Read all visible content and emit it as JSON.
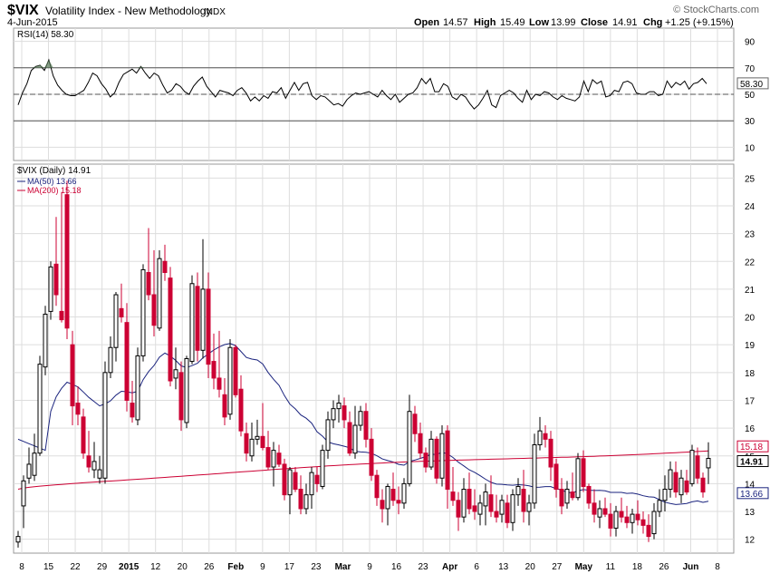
{
  "header": {
    "symbol": "$VIX",
    "name": "Volatility Index - New Methodology",
    "exchange": "INDX",
    "date": "4-Jun-2015",
    "watermark": "© StockCharts.com",
    "open_label": "Open",
    "open": "14.57",
    "high_label": "High",
    "high": "15.49",
    "low_label": "Low",
    "low": "13.99",
    "close_label": "Close",
    "close": "14.91",
    "chg_label": "Chg",
    "chg": "+1.25 (+9.15%)"
  },
  "colors": {
    "up": "#000000",
    "down": "#cc0033",
    "ma50": "#1a237e",
    "ma200": "#cc0033",
    "rsi": "#000000",
    "grid": "#dddddd"
  },
  "chart_data": [
    {
      "type": "line",
      "panel": "rsi",
      "label": "RSI(14) 58.30",
      "ylim": [
        0,
        100
      ],
      "yticks": [
        10,
        30,
        50,
        70,
        90
      ],
      "ref_lines": [
        30,
        50,
        70
      ],
      "last_value": "58.30",
      "values": [
        42,
        51,
        58,
        68,
        71,
        72,
        68,
        76,
        64,
        57,
        53,
        50,
        49,
        49,
        51,
        53,
        59,
        66,
        64,
        58,
        54,
        48,
        51,
        59,
        65,
        67,
        69,
        66,
        71,
        66,
        62,
        66,
        64,
        57,
        51,
        53,
        58,
        56,
        52,
        50,
        56,
        60,
        63,
        56,
        52,
        48,
        53,
        52,
        51,
        49,
        53,
        55,
        51,
        45,
        48,
        45,
        49,
        47,
        52,
        51,
        55,
        47,
        53,
        59,
        53,
        58,
        59,
        49,
        46,
        49,
        48,
        45,
        42,
        43,
        41,
        46,
        49,
        51,
        50,
        51,
        52,
        50,
        48,
        53,
        49,
        46,
        50,
        44,
        47,
        50,
        51,
        55,
        62,
        58,
        62,
        52,
        52,
        58,
        56,
        48,
        46,
        50,
        48,
        43,
        39,
        42,
        47,
        53,
        42,
        40,
        49,
        51,
        53,
        51,
        47,
        44,
        53,
        46,
        50,
        49,
        52,
        51,
        48,
        46,
        49,
        47,
        46,
        45,
        48,
        60,
        52,
        61,
        58,
        60,
        48,
        49,
        53,
        52,
        59,
        60,
        58,
        51,
        50,
        50,
        52,
        52,
        49,
        50,
        60,
        55,
        59,
        57,
        60,
        54,
        58,
        59,
        62,
        58
      ]
    },
    {
      "type": "candlestick",
      "panel": "price",
      "title": "$VIX (Daily) 14.91",
      "ylim": [
        11.5,
        25.5
      ],
      "yticks": [
        12,
        13,
        14,
        15,
        16,
        17,
        18,
        19,
        20,
        21,
        22,
        23,
        24,
        25
      ],
      "x_labels": [
        "8",
        "15",
        "22",
        "29",
        "2015",
        "12",
        "20",
        "26",
        "Feb",
        "9",
        "17",
        "23",
        "Mar",
        "9",
        "16",
        "23",
        "Apr",
        "6",
        "13",
        "20",
        "27",
        "May",
        "11",
        "18",
        "26",
        "Jun",
        "8"
      ],
      "price_tags": {
        "ma200": "15.18",
        "close": "14.91",
        "ma50": "13.66"
      },
      "series": [
        {
          "name": "MA(50) 13.66",
          "type": "line"
        },
        {
          "name": "MA(200) 15.18",
          "type": "line"
        }
      ],
      "ohlc": [
        [
          11.9,
          12.3,
          11.7,
          12.1
        ],
        [
          13.2,
          14.3,
          12.4,
          14.1
        ],
        [
          14.2,
          15.3,
          14.0,
          14.7
        ],
        [
          14.3,
          15.8,
          14.1,
          15.1
        ],
        [
          15.1,
          18.6,
          15.0,
          18.3
        ],
        [
          18.2,
          20.4,
          17.9,
          20.1
        ],
        [
          20.2,
          22.0,
          19.9,
          21.8
        ],
        [
          21.9,
          23.6,
          20.4,
          20.8
        ],
        [
          20.2,
          24.5,
          19.8,
          19.9
        ],
        [
          24.4,
          24.9,
          19.2,
          19.6
        ],
        [
          19.0,
          19.5,
          16.1,
          16.8
        ],
        [
          16.9,
          17.5,
          16.1,
          16.5
        ],
        [
          16.4,
          16.7,
          14.9,
          15.1
        ],
        [
          15.0,
          15.9,
          14.4,
          14.6
        ],
        [
          14.5,
          15.5,
          14.2,
          14.8
        ],
        [
          14.2,
          15.0,
          14.0,
          14.5
        ],
        [
          14.2,
          18.4,
          14.0,
          18.0
        ],
        [
          18.0,
          19.3,
          17.8,
          18.9
        ],
        [
          18.9,
          20.9,
          18.4,
          20.8
        ],
        [
          20.3,
          21.2,
          19.8,
          20.0
        ],
        [
          19.8,
          20.5,
          16.6,
          17.0
        ],
        [
          16.9,
          17.7,
          16.2,
          16.4
        ],
        [
          16.3,
          18.9,
          16.1,
          18.6
        ],
        [
          18.6,
          21.9,
          18.4,
          21.7
        ],
        [
          21.6,
          23.2,
          20.6,
          20.8
        ],
        [
          20.8,
          22.4,
          19.3,
          19.7
        ],
        [
          19.6,
          22.4,
          19.5,
          22.1
        ],
        [
          22.0,
          22.6,
          21.3,
          21.6
        ],
        [
          21.4,
          21.8,
          17.5,
          17.7
        ],
        [
          17.8,
          18.9,
          17.4,
          18.1
        ],
        [
          18.0,
          18.4,
          15.9,
          16.3
        ],
        [
          16.2,
          18.6,
          16.0,
          18.5
        ],
        [
          18.4,
          21.5,
          18.3,
          21.2
        ],
        [
          21.1,
          21.6,
          18.4,
          18.8
        ],
        [
          18.8,
          22.8,
          18.5,
          21.0
        ],
        [
          21.0,
          21.6,
          17.8,
          18.3
        ],
        [
          18.4,
          19.4,
          17.4,
          17.8
        ],
        [
          17.8,
          19.5,
          17.1,
          17.4
        ],
        [
          17.2,
          17.8,
          16.1,
          16.4
        ],
        [
          16.5,
          19.2,
          16.3,
          18.9
        ],
        [
          18.9,
          19.0,
          17.1,
          17.2
        ],
        [
          17.4,
          17.9,
          15.7,
          15.9
        ],
        [
          15.8,
          16.2,
          14.8,
          15.1
        ],
        [
          15.0,
          16.2,
          14.8,
          15.6
        ],
        [
          15.6,
          16.3,
          15.4,
          15.7
        ],
        [
          15.7,
          16.9,
          15.2,
          15.3
        ],
        [
          15.3,
          15.9,
          14.5,
          14.6
        ],
        [
          14.6,
          15.5,
          13.9,
          15.2
        ],
        [
          15.1,
          15.4,
          14.6,
          14.7
        ],
        [
          14.7,
          14.9,
          13.4,
          13.6
        ],
        [
          13.6,
          14.6,
          12.9,
          14.5
        ],
        [
          14.4,
          14.6,
          13.7,
          13.8
        ],
        [
          13.8,
          14.3,
          12.9,
          13.1
        ],
        [
          13.1,
          14.0,
          12.9,
          13.6
        ],
        [
          13.6,
          14.6,
          13.1,
          14.4
        ],
        [
          14.3,
          14.6,
          13.7,
          14.0
        ],
        [
          13.9,
          15.4,
          13.8,
          15.2
        ],
        [
          15.2,
          16.6,
          14.9,
          16.3
        ],
        [
          16.3,
          17.0,
          16.0,
          16.7
        ],
        [
          16.7,
          17.2,
          16.2,
          16.9
        ],
        [
          16.8,
          17.1,
          16.0,
          16.3
        ],
        [
          16.2,
          16.6,
          15.0,
          15.1
        ],
        [
          15.1,
          16.8,
          14.9,
          16.1
        ],
        [
          16.1,
          16.8,
          15.9,
          16.6
        ],
        [
          16.6,
          16.9,
          15.3,
          15.6
        ],
        [
          15.6,
          16.0,
          14.1,
          14.3
        ],
        [
          14.3,
          14.5,
          13.2,
          13.5
        ],
        [
          13.4,
          13.8,
          12.6,
          13.1
        ],
        [
          13.1,
          14.0,
          12.5,
          13.9
        ],
        [
          13.8,
          14.4,
          13.2,
          13.4
        ],
        [
          13.4,
          13.9,
          12.9,
          13.3
        ],
        [
          13.3,
          14.2,
          13.1,
          14.0
        ],
        [
          14.0,
          17.2,
          13.9,
          16.6
        ],
        [
          16.5,
          16.8,
          15.5,
          15.8
        ],
        [
          15.8,
          16.2,
          14.9,
          15.1
        ],
        [
          15.1,
          15.3,
          14.4,
          14.6
        ],
        [
          14.6,
          15.9,
          14.5,
          15.6
        ],
        [
          15.6,
          15.7,
          14.0,
          14.2
        ],
        [
          14.2,
          16.1,
          13.9,
          15.8
        ],
        [
          15.9,
          16.1,
          13.1,
          13.8
        ],
        [
          13.7,
          14.6,
          13.2,
          13.4
        ],
        [
          13.4,
          13.7,
          12.3,
          12.8
        ],
        [
          12.8,
          14.2,
          12.6,
          13.8
        ],
        [
          13.8,
          14.4,
          12.9,
          13.1
        ],
        [
          13.2,
          13.8,
          12.7,
          13.0
        ],
        [
          12.9,
          13.6,
          12.5,
          13.3
        ],
        [
          13.2,
          14.0,
          12.5,
          13.7
        ],
        [
          13.6,
          14.3,
          12.8,
          13.0
        ],
        [
          13.0,
          13.6,
          12.6,
          12.8
        ],
        [
          12.9,
          13.6,
          12.6,
          13.4
        ],
        [
          13.3,
          13.6,
          12.4,
          12.6
        ],
        [
          12.6,
          13.8,
          12.3,
          13.6
        ],
        [
          13.6,
          14.2,
          13.2,
          13.9
        ],
        [
          13.8,
          14.5,
          12.6,
          13.0
        ],
        [
          13.0,
          13.6,
          12.5,
          13.3
        ],
        [
          13.3,
          15.8,
          13.1,
          15.4
        ],
        [
          15.4,
          16.4,
          15.2,
          15.9
        ],
        [
          15.8,
          16.1,
          15.3,
          15.6
        ],
        [
          15.6,
          15.9,
          14.1,
          14.6
        ],
        [
          14.7,
          14.9,
          13.5,
          13.8
        ],
        [
          13.8,
          14.2,
          12.9,
          13.2
        ],
        [
          13.3,
          14.1,
          13.1,
          13.8
        ],
        [
          13.7,
          14.4,
          13.4,
          13.5
        ],
        [
          13.5,
          15.1,
          13.4,
          14.9
        ],
        [
          14.9,
          15.2,
          13.7,
          13.9
        ],
        [
          13.9,
          14.0,
          13.1,
          13.3
        ],
        [
          13.3,
          13.8,
          12.6,
          12.9
        ],
        [
          12.8,
          13.4,
          12.4,
          13.1
        ],
        [
          13.1,
          13.5,
          12.8,
          12.9
        ],
        [
          12.9,
          13.3,
          12.1,
          12.4
        ],
        [
          12.4,
          13.2,
          12.1,
          13.0
        ],
        [
          13.0,
          13.5,
          12.6,
          12.8
        ],
        [
          12.8,
          13.2,
          12.4,
          12.6
        ],
        [
          12.6,
          13.1,
          12.2,
          12.9
        ],
        [
          12.9,
          13.4,
          12.5,
          12.7
        ],
        [
          12.7,
          13.0,
          12.2,
          12.5
        ],
        [
          12.5,
          12.9,
          11.9,
          12.1
        ],
        [
          12.2,
          13.3,
          12.0,
          13.0
        ],
        [
          13.0,
          13.8,
          12.8,
          13.4
        ],
        [
          13.4,
          14.3,
          13.0,
          13.8
        ],
        [
          13.8,
          14.8,
          13.5,
          14.5
        ],
        [
          14.4,
          14.8,
          13.5,
          13.7
        ],
        [
          13.6,
          14.5,
          13.3,
          14.2
        ],
        [
          14.1,
          14.5,
          13.6,
          13.7
        ],
        [
          14.0,
          15.4,
          13.9,
          15.2
        ],
        [
          15.0,
          15.3,
          14.0,
          14.2
        ],
        [
          14.2,
          14.4,
          13.5,
          13.7
        ],
        [
          14.57,
          15.49,
          13.99,
          14.91
        ]
      ]
    }
  ]
}
